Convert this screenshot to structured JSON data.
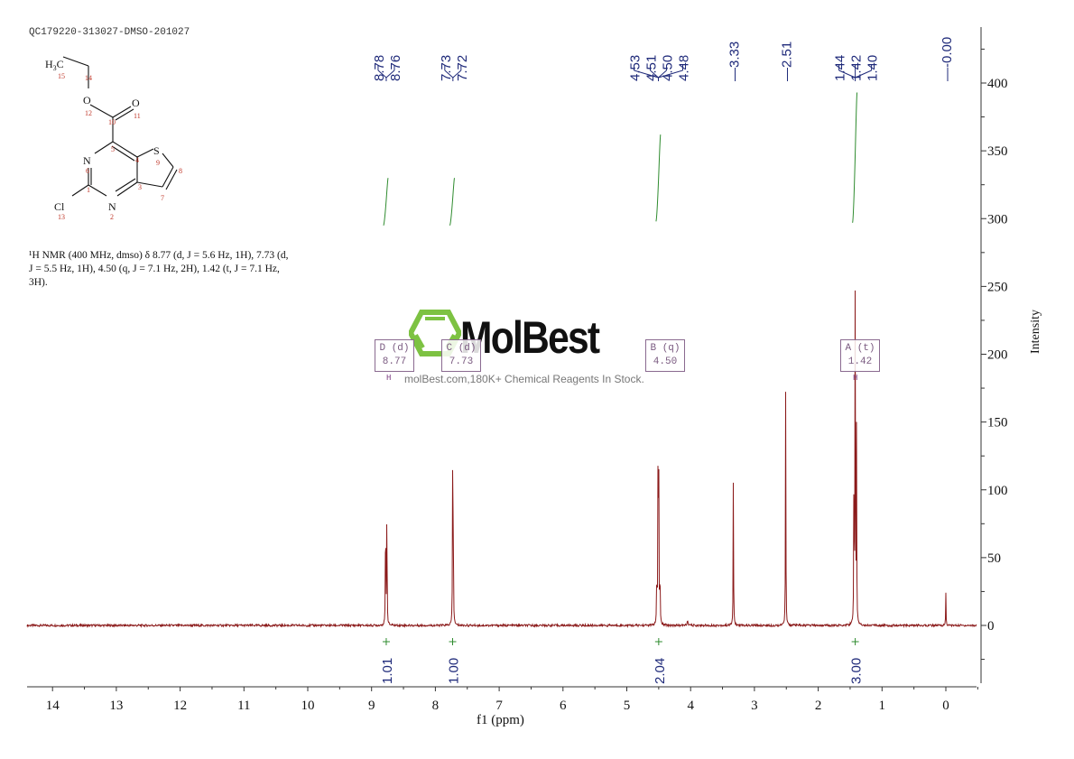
{
  "header": {
    "sample_id": "QC179220-313027-DMSO-201027"
  },
  "structure": {
    "name": "ethyl 2-chlorothieno[3,2-d]pyrimidine-4-carboxylate",
    "atoms": [
      {
        "label": "H3C",
        "num": "15"
      },
      {
        "label": "",
        "num": "14"
      },
      {
        "label": "O",
        "num": "12"
      },
      {
        "label": "",
        "num": "10"
      },
      {
        "label": "O",
        "num": "11"
      },
      {
        "label": "",
        "num": "5"
      },
      {
        "label": "N",
        "num": "6"
      },
      {
        "label": "",
        "num": "4"
      },
      {
        "label": "S",
        "num": "9"
      },
      {
        "label": "",
        "num": "8"
      },
      {
        "label": "",
        "num": "1"
      },
      {
        "label": "",
        "num": "3"
      },
      {
        "label": "",
        "num": "7"
      },
      {
        "label": "Cl",
        "num": "13"
      },
      {
        "label": "N",
        "num": "2"
      }
    ]
  },
  "description": {
    "line1": "¹H NMR (400 MHz, dmso) δ 8.77 (d, J = 5.6 Hz, 1H), 7.73 (d,",
    "line2": "J = 5.5 Hz, 1H), 4.50 (q, J = 7.1 Hz, 2H), 1.42 (t, J = 7.1 Hz,",
    "line3": "3H)."
  },
  "watermark": {
    "logo": "MolBest",
    "tagline": "molBest.com,180K+ Chemical Reagents In Stock.",
    "logo_color": "#7dc242"
  },
  "multiplets": [
    {
      "id": "D",
      "type": "(d)",
      "shift": "8.77"
    },
    {
      "id": "C",
      "type": "(d)",
      "shift": "7.73"
    },
    {
      "id": "B",
      "type": "(q)",
      "shift": "4.50"
    },
    {
      "id": "A",
      "type": "(t)",
      "shift": "1.42"
    }
  ],
  "colors": {
    "spectrum": "#8b1a1a",
    "integral": "#2e8b2e",
    "peak_label": "#1f2a7a",
    "multiplet_box": "#8a6a90",
    "axis": "#333333"
  },
  "chart_data": {
    "type": "line",
    "title": "QC179220-313027-DMSO-201027",
    "xlabel": "f1 (ppm)",
    "ylabel": "Intensity",
    "xlim": [
      14.5,
      -0.5
    ],
    "ylim": [
      -45,
      440
    ],
    "x_ticks": [
      "14",
      "13",
      "12",
      "11",
      "10",
      "9",
      "8",
      "7",
      "6",
      "5",
      "4",
      "3",
      "2",
      "1",
      "0"
    ],
    "y_ticks": [
      "0",
      "50",
      "100",
      "150",
      "200",
      "250",
      "300",
      "350",
      "400"
    ],
    "peak_labels": [
      {
        "group": [
          "8.78",
          "8.76"
        ]
      },
      {
        "group": [
          "7.73",
          "7.72"
        ]
      },
      {
        "group": [
          "4.53",
          "4.51",
          "4.50",
          "4.48"
        ]
      },
      {
        "group": [
          "3.33"
        ]
      },
      {
        "group": [
          "2.51"
        ]
      },
      {
        "group": [
          "1.44",
          "1.42",
          "1.40"
        ]
      },
      {
        "group": [
          "-0.00"
        ]
      }
    ],
    "peaks": [
      {
        "ppm": 8.78,
        "intensity": 104
      },
      {
        "ppm": 8.76,
        "intensity": 104
      },
      {
        "ppm": 7.73,
        "intensity": 103
      },
      {
        "ppm": 7.72,
        "intensity": 103
      },
      {
        "ppm": 4.53,
        "intensity": 45
      },
      {
        "ppm": 4.51,
        "intensity": 140
      },
      {
        "ppm": 4.5,
        "intensity": 140
      },
      {
        "ppm": 4.48,
        "intensity": 45
      },
      {
        "ppm": 3.33,
        "intensity": 113
      },
      {
        "ppm": 2.51,
        "intensity": 177
      },
      {
        "ppm": 1.44,
        "intensity": 142
      },
      {
        "ppm": 1.42,
        "intensity": 282
      },
      {
        "ppm": 1.4,
        "intensity": 142
      },
      {
        "ppm": 0.0,
        "intensity": 24
      }
    ],
    "integrals": [
      {
        "ppm": 8.77,
        "value": "1.01"
      },
      {
        "ppm": 7.73,
        "value": "1.00"
      },
      {
        "ppm": 4.5,
        "value": "2.04"
      },
      {
        "ppm": 1.42,
        "value": "3.00"
      }
    ],
    "integral_curves": [
      {
        "ppm": 8.77,
        "y_start": 295,
        "y_end": 330
      },
      {
        "ppm": 7.73,
        "y_start": 295,
        "y_end": 330
      },
      {
        "ppm": 4.5,
        "y_start": 298,
        "y_end": 362
      },
      {
        "ppm": 1.42,
        "y_start": 297,
        "y_end": 393
      }
    ],
    "grid": false
  }
}
